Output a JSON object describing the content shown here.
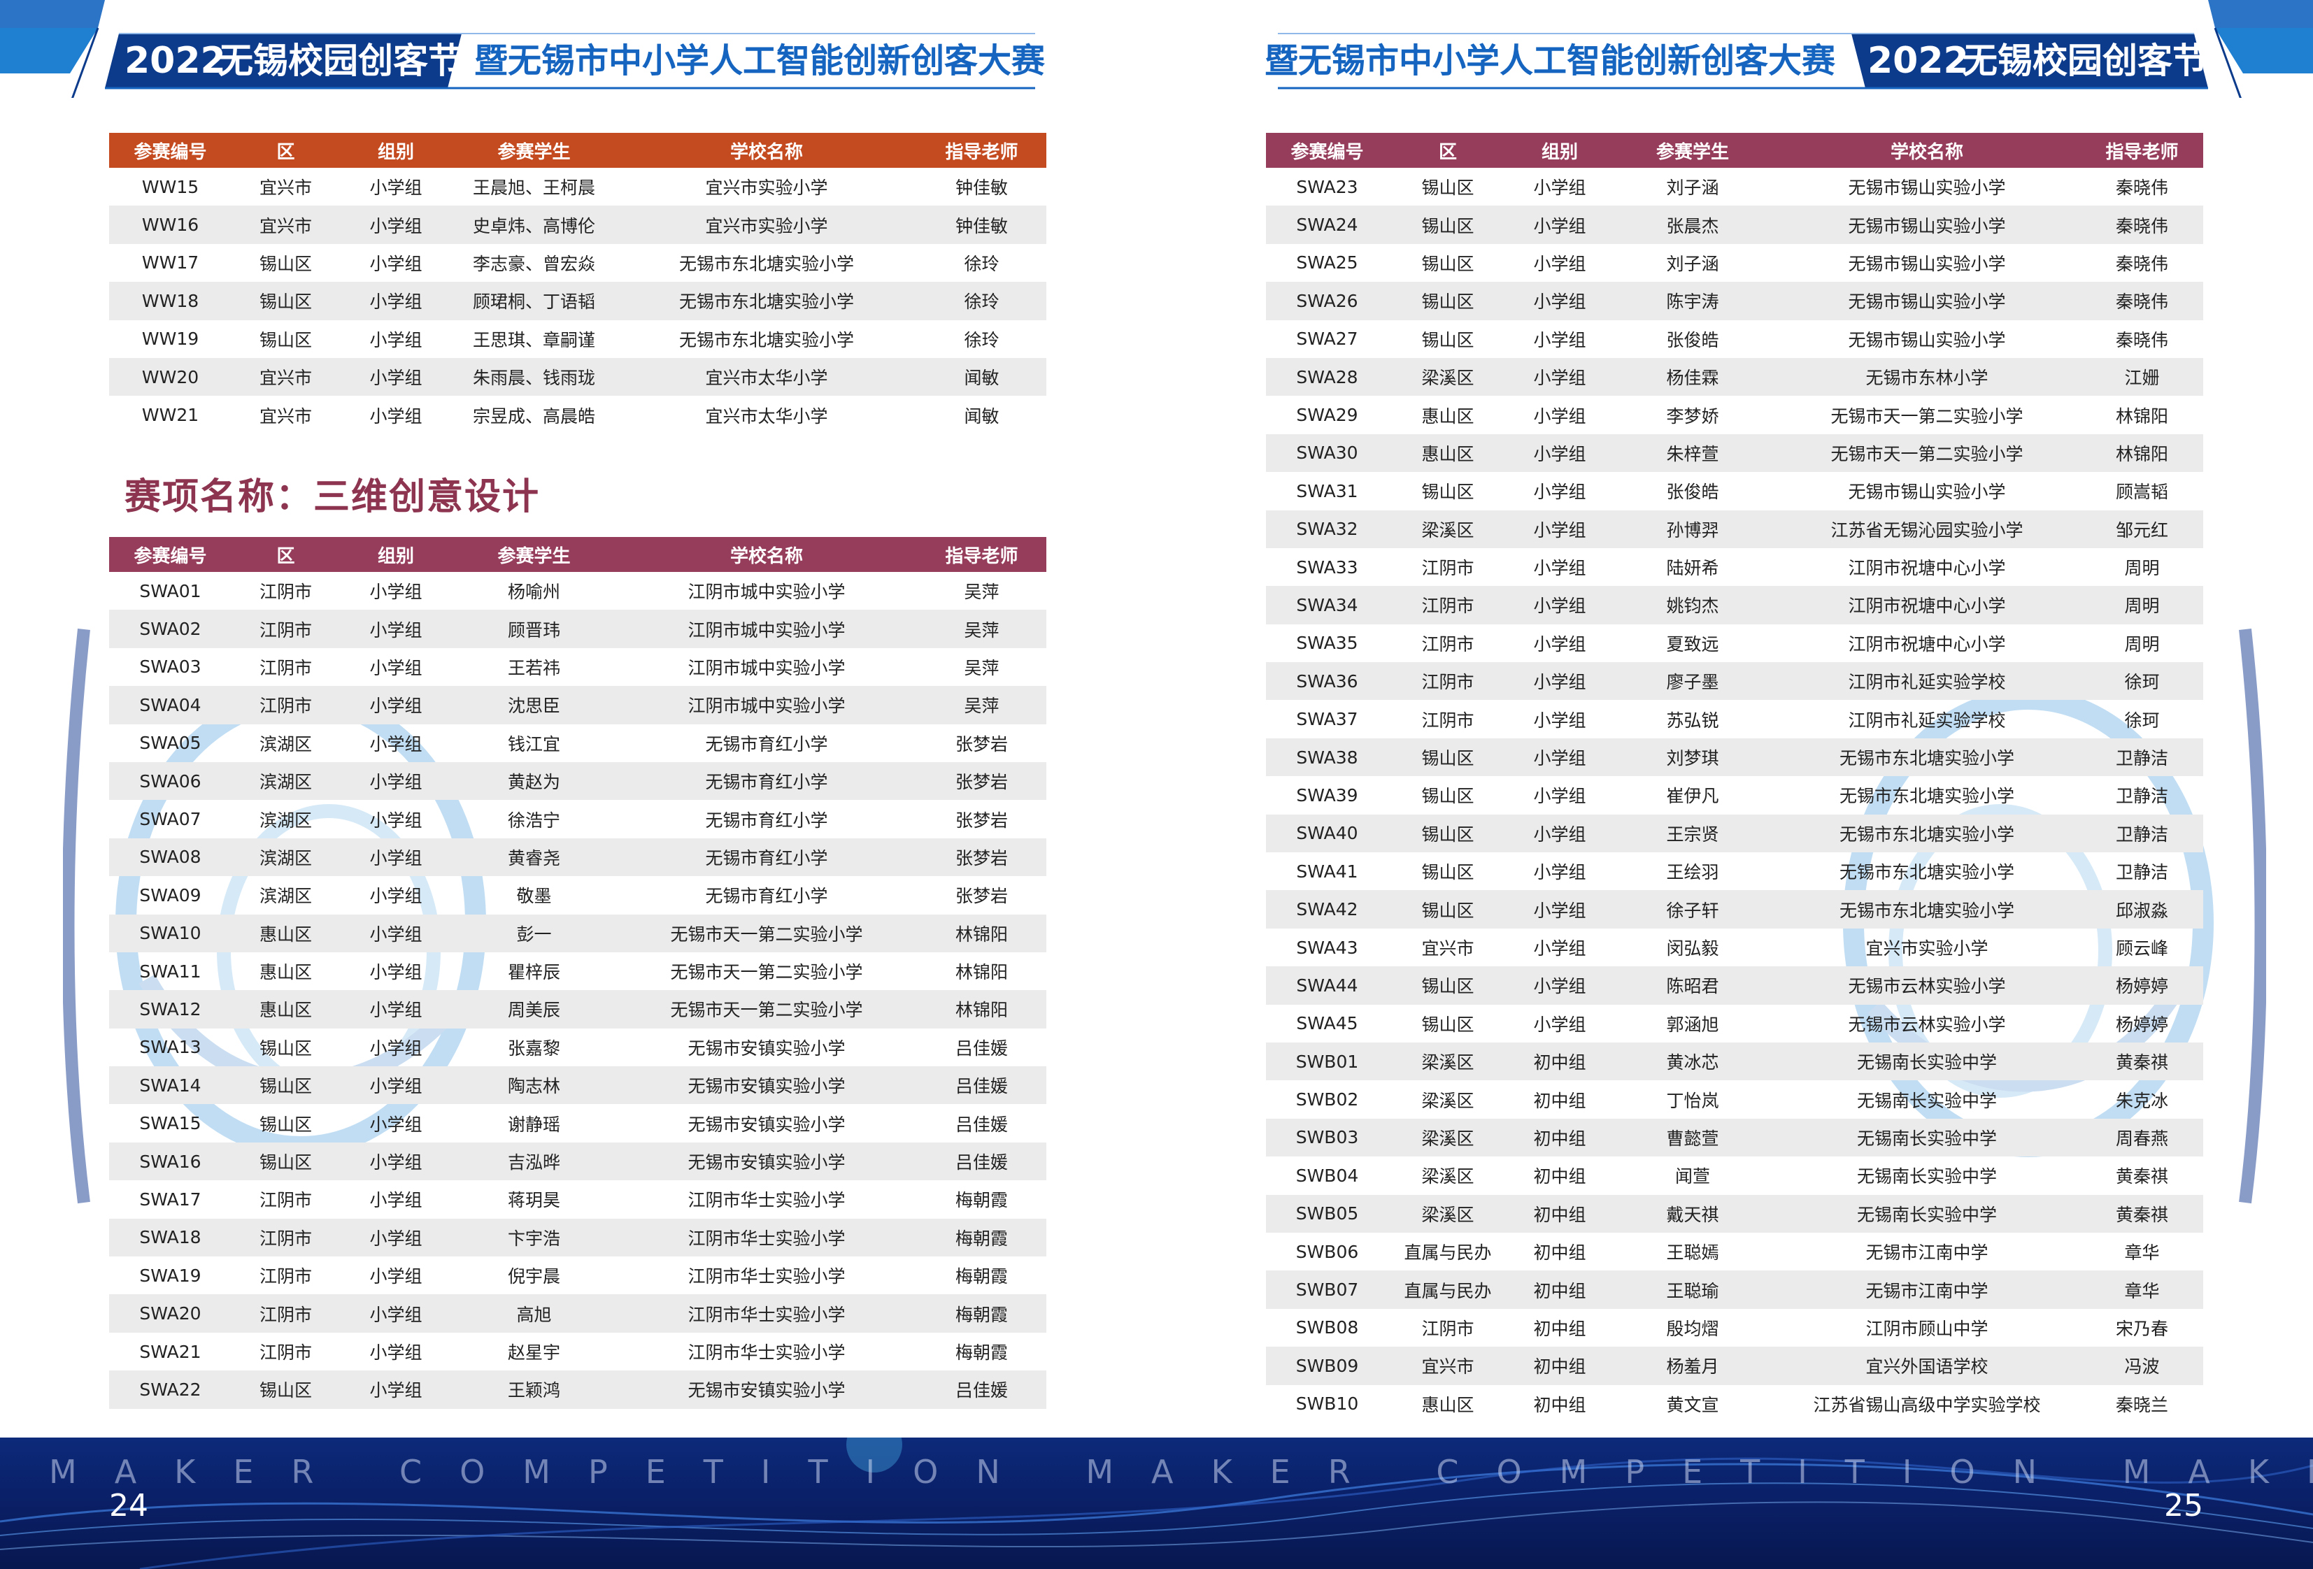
{
  "header": {
    "left": {
      "year": "2022",
      "festival": "无锡校园创客节",
      "subtitle": "暨无锡市中小学人工智能创新创客大赛"
    },
    "right": {
      "subtitle": "暨无锡市中小学人工智能创新创客大赛",
      "year": "2022",
      "festival": "无锡校园创客节"
    }
  },
  "columns": [
    "参赛编号",
    "区",
    "组别",
    "参赛学生",
    "学校名称",
    "指导老师"
  ],
  "section_title": "赛项名称：三维创意设计",
  "table_ww": [
    [
      "WW15",
      "宜兴市",
      "小学组",
      "王晨旭、王柯晨",
      "宜兴市实验小学",
      "钟佳敏"
    ],
    [
      "WW16",
      "宜兴市",
      "小学组",
      "史卓炜、高博伦",
      "宜兴市实验小学",
      "钟佳敏"
    ],
    [
      "WW17",
      "锡山区",
      "小学组",
      "李志豪、曾宏焱",
      "无锡市东北塘实验小学",
      "徐玲"
    ],
    [
      "WW18",
      "锡山区",
      "小学组",
      "顾珺桐、丁语韬",
      "无锡市东北塘实验小学",
      "徐玲"
    ],
    [
      "WW19",
      "锡山区",
      "小学组",
      "王思琪、章嗣谨",
      "无锡市东北塘实验小学",
      "徐玲"
    ],
    [
      "WW20",
      "宜兴市",
      "小学组",
      "朱雨晨、钱雨珑",
      "宜兴市太华小学",
      "闻敏"
    ],
    [
      "WW21",
      "宜兴市",
      "小学组",
      "宗昱成、高晨皓",
      "宜兴市太华小学",
      "闻敏"
    ]
  ],
  "table_swa_left": [
    [
      "SWA01",
      "江阴市",
      "小学组",
      "杨喻州",
      "江阴市城中实验小学",
      "吴萍"
    ],
    [
      "SWA02",
      "江阴市",
      "小学组",
      "顾晋玮",
      "江阴市城中实验小学",
      "吴萍"
    ],
    [
      "SWA03",
      "江阴市",
      "小学组",
      "王若祎",
      "江阴市城中实验小学",
      "吴萍"
    ],
    [
      "SWA04",
      "江阴市",
      "小学组",
      "沈思臣",
      "江阴市城中实验小学",
      "吴萍"
    ],
    [
      "SWA05",
      "滨湖区",
      "小学组",
      "钱江宜",
      "无锡市育红小学",
      "张梦岩"
    ],
    [
      "SWA06",
      "滨湖区",
      "小学组",
      "黄赵为",
      "无锡市育红小学",
      "张梦岩"
    ],
    [
      "SWA07",
      "滨湖区",
      "小学组",
      "徐浩宁",
      "无锡市育红小学",
      "张梦岩"
    ],
    [
      "SWA08",
      "滨湖区",
      "小学组",
      "黄睿尧",
      "无锡市育红小学",
      "张梦岩"
    ],
    [
      "SWA09",
      "滨湖区",
      "小学组",
      "敬墨",
      "无锡市育红小学",
      "张梦岩"
    ],
    [
      "SWA10",
      "惠山区",
      "小学组",
      "彭一",
      "无锡市天一第二实验小学",
      "林锦阳"
    ],
    [
      "SWA11",
      "惠山区",
      "小学组",
      "瞿梓辰",
      "无锡市天一第二实验小学",
      "林锦阳"
    ],
    [
      "SWA12",
      "惠山区",
      "小学组",
      "周美辰",
      "无锡市天一第二实验小学",
      "林锦阳"
    ],
    [
      "SWA13",
      "锡山区",
      "小学组",
      "张嘉黎",
      "无锡市安镇实验小学",
      "吕佳媛"
    ],
    [
      "SWA14",
      "锡山区",
      "小学组",
      "陶志林",
      "无锡市安镇实验小学",
      "吕佳媛"
    ],
    [
      "SWA15",
      "锡山区",
      "小学组",
      "谢静瑶",
      "无锡市安镇实验小学",
      "吕佳媛"
    ],
    [
      "SWA16",
      "锡山区",
      "小学组",
      "吉泓晔",
      "无锡市安镇实验小学",
      "吕佳媛"
    ],
    [
      "SWA17",
      "江阴市",
      "小学组",
      "蒋玥昊",
      "江阴市华士实验小学",
      "梅朝霞"
    ],
    [
      "SWA18",
      "江阴市",
      "小学组",
      "卞宇浩",
      "江阴市华士实验小学",
      "梅朝霞"
    ],
    [
      "SWA19",
      "江阴市",
      "小学组",
      "倪宇晨",
      "江阴市华士实验小学",
      "梅朝霞"
    ],
    [
      "SWA20",
      "江阴市",
      "小学组",
      "高旭",
      "江阴市华士实验小学",
      "梅朝霞"
    ],
    [
      "SWA21",
      "江阴市",
      "小学组",
      "赵星宇",
      "江阴市华士实验小学",
      "梅朝霞"
    ],
    [
      "SWA22",
      "锡山区",
      "小学组",
      "王颖鸿",
      "无锡市安镇实验小学",
      "吕佳媛"
    ]
  ],
  "table_right": [
    [
      "SWA23",
      "锡山区",
      "小学组",
      "刘子涵",
      "无锡市锡山实验小学",
      "秦晓伟"
    ],
    [
      "SWA24",
      "锡山区",
      "小学组",
      "张晨杰",
      "无锡市锡山实验小学",
      "秦晓伟"
    ],
    [
      "SWA25",
      "锡山区",
      "小学组",
      "刘子涵",
      "无锡市锡山实验小学",
      "秦晓伟"
    ],
    [
      "SWA26",
      "锡山区",
      "小学组",
      "陈宇涛",
      "无锡市锡山实验小学",
      "秦晓伟"
    ],
    [
      "SWA27",
      "锡山区",
      "小学组",
      "张俊皓",
      "无锡市锡山实验小学",
      "秦晓伟"
    ],
    [
      "SWA28",
      "梁溪区",
      "小学组",
      "杨佳霖",
      "无锡市东林小学",
      "江姗"
    ],
    [
      "SWA29",
      "惠山区",
      "小学组",
      "李梦娇",
      "无锡市天一第二实验小学",
      "林锦阳"
    ],
    [
      "SWA30",
      "惠山区",
      "小学组",
      "朱梓萱",
      "无锡市天一第二实验小学",
      "林锦阳"
    ],
    [
      "SWA31",
      "锡山区",
      "小学组",
      "张俊皓",
      "无锡市锡山实验小学",
      "顾嵩韬"
    ],
    [
      "SWA32",
      "梁溪区",
      "小学组",
      "孙博羿",
      "江苏省无锡沁园实验小学",
      "邹元红"
    ],
    [
      "SWA33",
      "江阴市",
      "小学组",
      "陆妍希",
      "江阴市祝塘中心小学",
      "周明"
    ],
    [
      "SWA34",
      "江阴市",
      "小学组",
      "姚钧杰",
      "江阴市祝塘中心小学",
      "周明"
    ],
    [
      "SWA35",
      "江阴市",
      "小学组",
      "夏致远",
      "江阴市祝塘中心小学",
      "周明"
    ],
    [
      "SWA36",
      "江阴市",
      "小学组",
      "廖子墨",
      "江阴市礼延实验学校",
      "徐珂"
    ],
    [
      "SWA37",
      "江阴市",
      "小学组",
      "苏弘锐",
      "江阴市礼延实验学校",
      "徐珂"
    ],
    [
      "SWA38",
      "锡山区",
      "小学组",
      "刘梦琪",
      "无锡市东北塘实验小学",
      "卫静洁"
    ],
    [
      "SWA39",
      "锡山区",
      "小学组",
      "崔伊凡",
      "无锡市东北塘实验小学",
      "卫静洁"
    ],
    [
      "SWA40",
      "锡山区",
      "小学组",
      "王宗贤",
      "无锡市东北塘实验小学",
      "卫静洁"
    ],
    [
      "SWA41",
      "锡山区",
      "小学组",
      "王绘羽",
      "无锡市东北塘实验小学",
      "卫静洁"
    ],
    [
      "SWA42",
      "锡山区",
      "小学组",
      "徐子轩",
      "无锡市东北塘实验小学",
      "邱淑淼"
    ],
    [
      "SWA43",
      "宜兴市",
      "小学组",
      "闵弘毅",
      "宜兴市实验小学",
      "顾云峰"
    ],
    [
      "SWA44",
      "锡山区",
      "小学组",
      "陈昭君",
      "无锡市云林实验小学",
      "杨婷婷"
    ],
    [
      "SWA45",
      "锡山区",
      "小学组",
      "郭涵旭",
      "无锡市云林实验小学",
      "杨婷婷"
    ],
    [
      "SWB01",
      "梁溪区",
      "初中组",
      "黄冰芯",
      "无锡南长实验中学",
      "黄秦祺"
    ],
    [
      "SWB02",
      "梁溪区",
      "初中组",
      "丁怡岚",
      "无锡南长实验中学",
      "朱克冰"
    ],
    [
      "SWB03",
      "梁溪区",
      "初中组",
      "曹懿萱",
      "无锡南长实验中学",
      "周春燕"
    ],
    [
      "SWB04",
      "梁溪区",
      "初中组",
      "闻萱",
      "无锡南长实验中学",
      "黄秦祺"
    ],
    [
      "SWB05",
      "梁溪区",
      "初中组",
      "戴天祺",
      "无锡南长实验中学",
      "黄秦祺"
    ],
    [
      "SWB06",
      "直属与民办",
      "初中组",
      "王聪嫣",
      "无锡市江南中学",
      "章华"
    ],
    [
      "SWB07",
      "直属与民办",
      "初中组",
      "王聪瑜",
      "无锡市江南中学",
      "章华"
    ],
    [
      "SWB08",
      "江阴市",
      "初中组",
      "殷均熠",
      "江阴市顾山中学",
      "宋乃春"
    ],
    [
      "SWB09",
      "宜兴市",
      "初中组",
      "杨羞月",
      "宜兴外国语学校",
      "冯波"
    ],
    [
      "SWB10",
      "惠山区",
      "初中组",
      "黄文宣",
      "江苏省锡山高级中学实验学校",
      "秦晓兰"
    ]
  ],
  "footer": {
    "watermark": "MAKER COMPETITION MAKER COMPETITION MAKER COMPETITION",
    "page_left": "24",
    "page_right": "25"
  }
}
